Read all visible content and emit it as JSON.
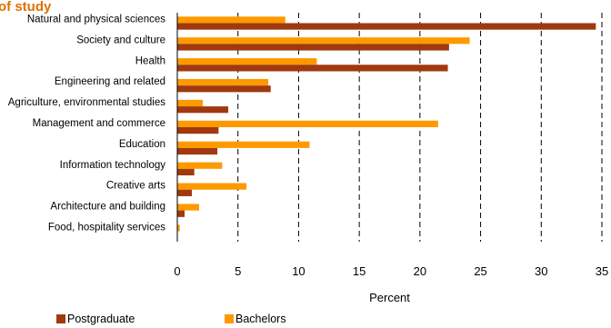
{
  "chart_data": {
    "type": "bar",
    "orientation": "horizontal",
    "title_fragment": "of study",
    "title_color": "#e07000",
    "categories": [
      "Natural and physical sciences",
      "Society and culture",
      "Health",
      "Engineering and related",
      "Agriculture, environmental studies",
      "Management and commerce",
      "Education",
      "Information technology",
      "Creative arts",
      "Architecture and building",
      "Food, hospitality services"
    ],
    "series": [
      {
        "name": "Bachelors",
        "color": "#ff9900",
        "values": [
          8.9,
          24.1,
          11.5,
          7.5,
          2.1,
          21.5,
          10.9,
          3.7,
          5.7,
          1.8,
          0.2
        ]
      },
      {
        "name": "Postgraduate",
        "color": "#a0390f",
        "values": [
          34.5,
          22.4,
          22.3,
          7.7,
          4.2,
          3.4,
          3.3,
          1.4,
          1.2,
          0.6,
          0.0
        ]
      }
    ],
    "xlabel": "Percent",
    "xlim": [
      0,
      35
    ],
    "xticks": [
      0,
      5,
      10,
      15,
      20,
      25,
      30,
      35
    ],
    "grid": "vertical dashed",
    "legend_position": "bottom"
  }
}
